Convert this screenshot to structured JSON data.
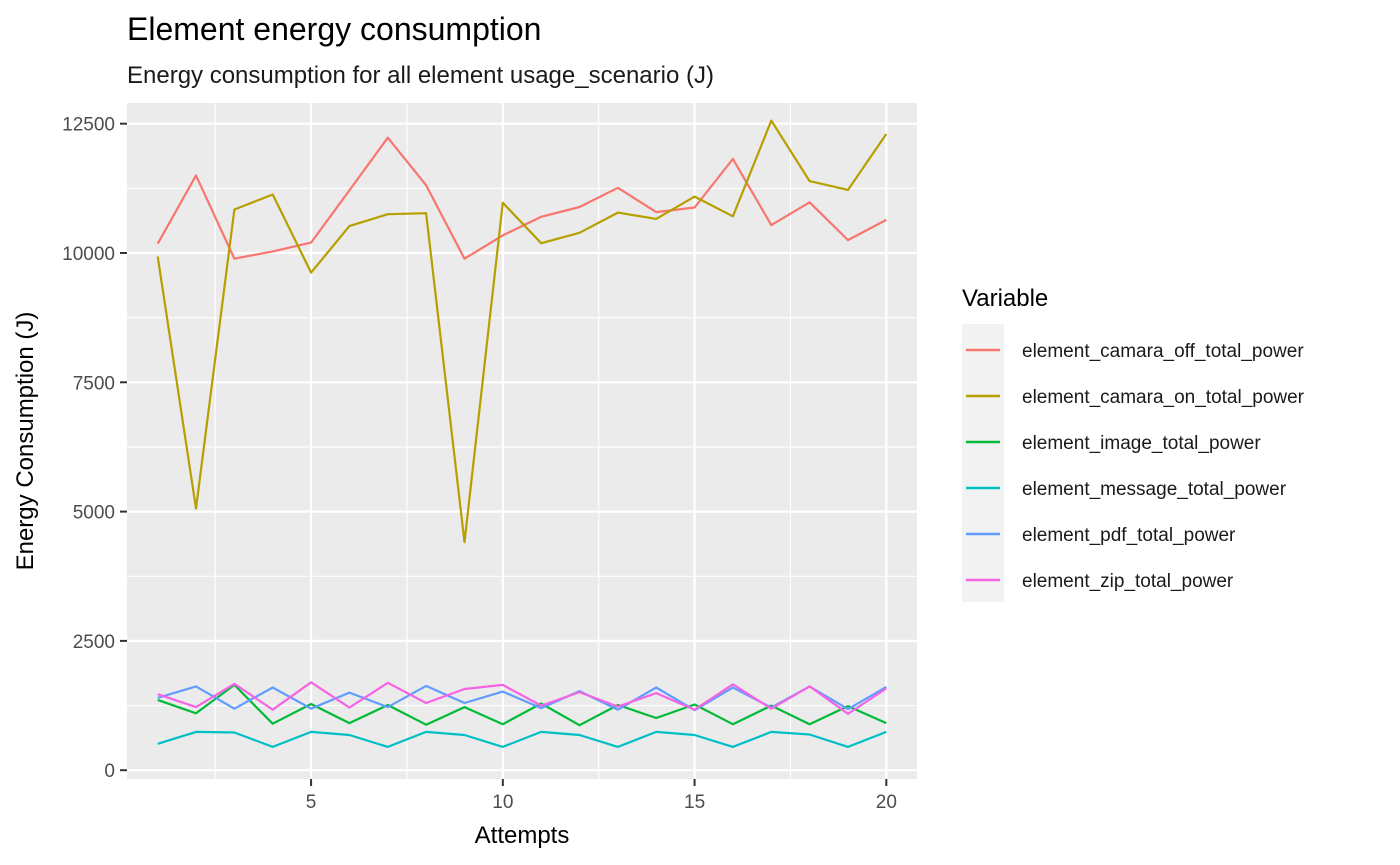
{
  "chart_data": {
    "type": "line",
    "title": "Element energy consumption",
    "subtitle": "Energy consumption for all element usage_scenario (J)",
    "xlabel": "Attempts",
    "ylabel": "Energy Consumption (J)",
    "xlim": [
      0.2,
      20.8
    ],
    "ylim": [
      -170,
      12900
    ],
    "x_ticks": [
      5,
      10,
      15,
      20
    ],
    "x_minor_ticks": [
      2.5,
      7.5,
      12.5,
      17.5
    ],
    "y_ticks": [
      0,
      2500,
      5000,
      7500,
      10000,
      12500
    ],
    "y_minor_ticks": [
      1250,
      3750,
      6250,
      8750,
      11250
    ],
    "grid": true,
    "legend": {
      "title": "Variable",
      "position": "right"
    },
    "x": [
      1,
      2,
      3,
      4,
      5,
      6,
      7,
      8,
      9,
      10,
      11,
      12,
      13,
      14,
      15,
      16,
      17,
      18,
      19,
      20
    ],
    "series": [
      {
        "name": "element_camara_off_total_power",
        "color": "#F8766D",
        "values": [
          10180,
          11500,
          9890,
          10030,
          10200,
          11210,
          12230,
          11310,
          9890,
          10340,
          10700,
          10890,
          11260,
          10790,
          10880,
          11820,
          10540,
          10980,
          10250,
          10640
        ]
      },
      {
        "name": "element_camara_on_total_power",
        "color": "#B79F00",
        "values": [
          9930,
          5060,
          10840,
          11130,
          9620,
          10520,
          10750,
          10770,
          4410,
          10970,
          10190,
          10390,
          10780,
          10660,
          11090,
          10710,
          12560,
          11390,
          11220,
          12300
        ]
      },
      {
        "name": "element_image_total_power",
        "color": "#00BA38",
        "values": [
          1360,
          1100,
          1650,
          900,
          1280,
          910,
          1260,
          880,
          1220,
          890,
          1290,
          870,
          1260,
          1010,
          1270,
          890,
          1250,
          890,
          1240,
          910
        ]
      },
      {
        "name": "element_message_total_power",
        "color": "#00BFC4",
        "values": [
          510,
          740,
          730,
          450,
          740,
          680,
          450,
          740,
          680,
          450,
          740,
          680,
          450,
          740,
          680,
          450,
          740,
          690,
          450,
          740
        ]
      },
      {
        "name": "element_pdf_total_power",
        "color": "#619CFF",
        "values": [
          1400,
          1620,
          1190,
          1600,
          1190,
          1500,
          1220,
          1630,
          1300,
          1520,
          1200,
          1530,
          1170,
          1600,
          1160,
          1600,
          1210,
          1620,
          1180,
          1610
        ]
      },
      {
        "name": "element_zip_total_power",
        "color": "#F564E3",
        "values": [
          1470,
          1220,
          1670,
          1170,
          1700,
          1210,
          1690,
          1300,
          1570,
          1650,
          1250,
          1510,
          1230,
          1490,
          1170,
          1660,
          1190,
          1620,
          1090,
          1580
        ]
      }
    ]
  }
}
